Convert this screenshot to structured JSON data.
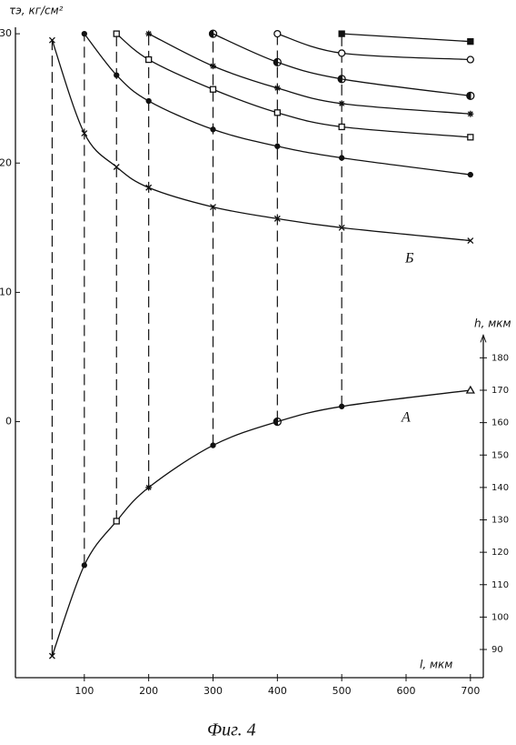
{
  "chart_data": {
    "type": "line",
    "y_label": "τэ, кг/см²",
    "y2_label": "h, мкм",
    "x_label": "l, мкм",
    "caption": "Фиг. 4",
    "annotations": [
      "Б",
      "А"
    ],
    "xlim": [
      0,
      720
    ],
    "xticks": [
      100,
      200,
      300,
      400,
      500,
      600,
      700
    ],
    "ylim": [
      -19.8,
      30.5
    ],
    "yticks": [
      0,
      10,
      20,
      30
    ],
    "y2lim": [
      81.3,
      282
    ],
    "y2ticks": [
      90,
      100,
      110,
      120,
      130,
      140,
      150,
      160,
      170,
      180
    ],
    "color": "#111",
    "series": [
      {
        "marker": "x",
        "x": [
          50,
          100,
          150,
          200,
          300,
          400,
          500,
          700
        ],
        "values": [
          29.5,
          22.3,
          19.7,
          18.1,
          16.6,
          15.7,
          15.0,
          14.0
        ]
      },
      {
        "marker": "dot",
        "x": [
          100,
          150,
          200,
          300,
          400,
          500,
          700
        ],
        "values": [
          30,
          26.8,
          24.8,
          22.6,
          21.3,
          20.4,
          19.1
        ]
      },
      {
        "marker": "square",
        "x": [
          150,
          200,
          300,
          400,
          500,
          700
        ],
        "values": [
          30,
          28.0,
          25.7,
          23.9,
          22.8,
          22.0
        ]
      },
      {
        "marker": "asterisk",
        "x": [
          200,
          300,
          400,
          500,
          700
        ],
        "values": [
          30,
          27.5,
          25.8,
          24.6,
          23.8
        ]
      },
      {
        "marker": "halfcircle",
        "x": [
          300,
          400,
          500,
          700
        ],
        "values": [
          30,
          27.8,
          26.5,
          25.2
        ]
      },
      {
        "marker": "circle",
        "x": [
          400,
          500,
          700
        ],
        "values": [
          30,
          28.5,
          28.0
        ]
      },
      {
        "marker": "fsquare",
        "x": [
          500,
          700
        ],
        "values": [
          30,
          29.4
        ]
      },
      {
        "axis": "y2",
        "markers": [
          "x",
          "dot",
          "square",
          "asterisk",
          "dot",
          "halfcircle",
          "dot",
          "triangle"
        ],
        "x": [
          50,
          100,
          150,
          200,
          300,
          400,
          500,
          700
        ],
        "values": [
          88,
          116,
          129.6,
          140,
          153,
          160.3,
          165,
          170
        ]
      }
    ]
  }
}
